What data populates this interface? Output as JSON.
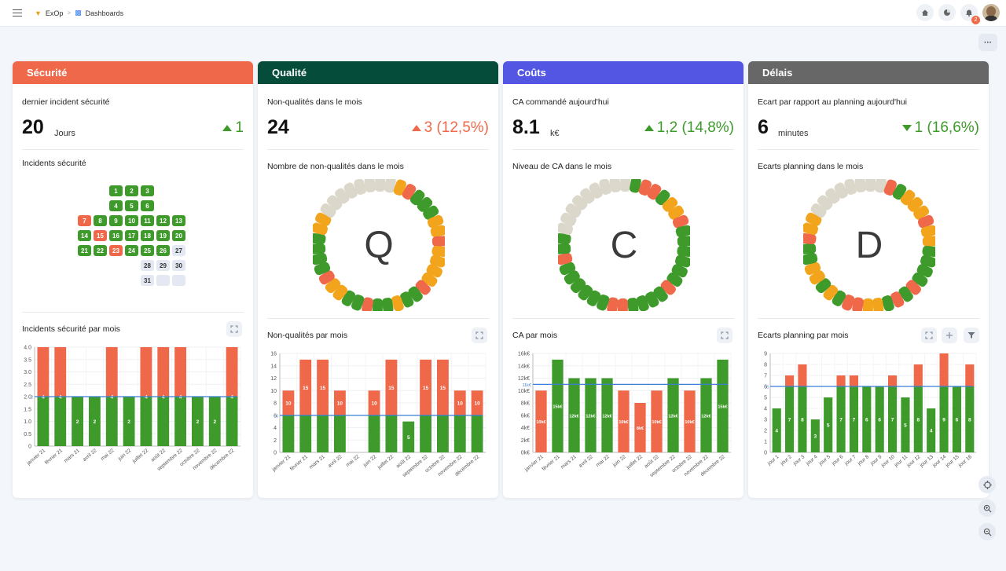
{
  "topbar": {
    "breadcrumb": [
      "ExOp",
      "Dashboards"
    ],
    "notification_count": "2"
  },
  "cards": [
    {
      "title": "Sécurité",
      "color": "#f0684a",
      "kpi_label": "dernier incident sécurité",
      "kpi_value": "20",
      "kpi_unit": "Jours",
      "kpi_delta": "1",
      "kpi_delta_dir": "up",
      "kpi_delta_color": "#3e9a2a",
      "section_title": "Incidents sécurité",
      "chart_title": "Incidents sécurité par mois"
    },
    {
      "title": "Qualité",
      "color": "#054d3a",
      "kpi_label": "Non-qualités dans le mois",
      "kpi_value": "24",
      "kpi_unit": "",
      "kpi_delta": "3 (12,5%)",
      "kpi_delta_dir": "up",
      "kpi_delta_color": "#f0684a",
      "section_title": "Nombre de non-qualités dans le mois",
      "wheel_letter": "Q",
      "chart_title": "Non-qualités par mois"
    },
    {
      "title": "Coûts",
      "color": "#5256e3",
      "kpi_label": "CA commandé aujourd'hui",
      "kpi_value": "8.1",
      "kpi_unit": "k€",
      "kpi_delta": "1,2 (14,8%)",
      "kpi_delta_dir": "up",
      "kpi_delta_color": "#3e9a2a",
      "section_title": "Niveau de CA dans le mois",
      "wheel_letter": "C",
      "chart_title": "CA par mois"
    },
    {
      "title": "Délais",
      "color": "#676767",
      "kpi_label": "Ecart par rapport au planning aujourd'hui",
      "kpi_value": "6",
      "kpi_unit": "minutes",
      "kpi_delta": "1 (16,6%)",
      "kpi_delta_dir": "down",
      "kpi_delta_color": "#3e9a2a",
      "section_title": "Ecarts planning dans le mois",
      "wheel_letter": "D",
      "chart_title": "Ecarts planning par mois"
    }
  ],
  "calendar": {
    "days": [
      {
        "d": "1",
        "c": "g"
      },
      {
        "d": "2",
        "c": "g"
      },
      {
        "d": "3",
        "c": "g"
      },
      {
        "d": "4",
        "c": "g"
      },
      {
        "d": "5",
        "c": "g"
      },
      {
        "d": "6",
        "c": "g"
      },
      {
        "d": "7",
        "c": "r"
      },
      {
        "d": "8",
        "c": "g"
      },
      {
        "d": "9",
        "c": "g"
      },
      {
        "d": "10",
        "c": "g"
      },
      {
        "d": "11",
        "c": "g"
      },
      {
        "d": "12",
        "c": "g"
      },
      {
        "d": "13",
        "c": "g"
      },
      {
        "d": "14",
        "c": "g"
      },
      {
        "d": "15",
        "c": "r"
      },
      {
        "d": "16",
        "c": "g"
      },
      {
        "d": "17",
        "c": "g"
      },
      {
        "d": "18",
        "c": "g"
      },
      {
        "d": "19",
        "c": "g"
      },
      {
        "d": "20",
        "c": "g"
      },
      {
        "d": "21",
        "c": "g"
      },
      {
        "d": "22",
        "c": "g"
      },
      {
        "d": "23",
        "c": "r"
      },
      {
        "d": "24",
        "c": "g"
      },
      {
        "d": "25",
        "c": "g"
      },
      {
        "d": "26",
        "c": "g"
      },
      {
        "d": "27",
        "c": "e"
      },
      {
        "d": "28",
        "c": "e"
      },
      {
        "d": "29",
        "c": "e"
      },
      {
        "d": "30",
        "c": "e"
      },
      {
        "d": "31",
        "c": "e"
      },
      {
        "d": "",
        "c": "e"
      },
      {
        "d": "",
        "c": "e"
      }
    ]
  },
  "wheels": [
    [
      "n",
      "n",
      "n",
      "n",
      "n",
      "o",
      "r",
      "g",
      "g",
      "g",
      "o",
      "o",
      "r",
      "o",
      "o",
      "o",
      "o",
      "r",
      "g",
      "g",
      "o",
      "g",
      "g",
      "r",
      "g",
      "g",
      "o",
      "o",
      "r",
      "g",
      "g",
      "g",
      "g",
      "o",
      "o",
      "n",
      "n",
      "n"
    ],
    [
      "n",
      "n",
      "n",
      "n",
      "g",
      "r",
      "r",
      "g",
      "o",
      "o",
      "r",
      "g",
      "g",
      "g",
      "g",
      "g",
      "g",
      "r",
      "g",
      "g",
      "g",
      "g",
      "r",
      "r",
      "g",
      "g",
      "g",
      "g",
      "g",
      "g",
      "r",
      "g",
      "g",
      "n",
      "n",
      "n",
      "n",
      "n"
    ],
    [
      "n",
      "n",
      "n",
      "n",
      "n",
      "r",
      "g",
      "o",
      "o",
      "o",
      "r",
      "o",
      "o",
      "g",
      "g",
      "g",
      "g",
      "r",
      "g",
      "r",
      "g",
      "o",
      "o",
      "r",
      "r",
      "g",
      "o",
      "g",
      "o",
      "o",
      "g",
      "g",
      "r",
      "o",
      "o",
      "n",
      "n",
      "n"
    ]
  ],
  "chart_data": [
    {
      "type": "bar",
      "title": "Incidents sécurité par mois",
      "categories": [
        "janvier 21",
        "février 21",
        "mars 21",
        "avril 22",
        "mai 22",
        "juin 22",
        "juillet 22",
        "août 22",
        "septembre 22",
        "octobre 22",
        "novembre 22",
        "décembre 22"
      ],
      "series": [
        {
          "values": [
            2,
            2,
            2,
            2,
            2,
            2,
            2,
            2,
            2,
            2,
            2,
            2
          ],
          "color": "#3e9a2a"
        },
        {
          "values": [
            2,
            2,
            0,
            0,
            2,
            0,
            2,
            2,
            2,
            0,
            0,
            2
          ],
          "color": "#f0684a"
        }
      ],
      "bar_labels": [
        "4",
        "4",
        "2",
        "2",
        "4",
        "2",
        "4",
        "4",
        "4",
        "2",
        "2",
        "4"
      ],
      "target": 2,
      "target_label": "2",
      "yticks": [
        "0",
        "0.5",
        "1.0",
        "1.5",
        "2.0",
        "2.5",
        "3.0",
        "3.5",
        "4.0"
      ],
      "ylim": [
        0,
        4
      ]
    },
    {
      "type": "bar",
      "title": "Non-qualités par mois",
      "categories": [
        "janvier 21",
        "février 21",
        "mars 21",
        "avril 22",
        "mai 22",
        "juin 22",
        "juillet 22",
        "août 22",
        "septembre 22",
        "octobre 22",
        "novembre 22",
        "décembre 22"
      ],
      "series": [
        {
          "values": [
            6,
            6,
            6,
            6,
            0,
            6,
            6,
            5,
            6,
            6,
            6,
            6
          ],
          "color": "#3e9a2a"
        },
        {
          "values": [
            4,
            9,
            9,
            4,
            0,
            4,
            9,
            0,
            9,
            9,
            4,
            4
          ],
          "color": "#f0684a"
        }
      ],
      "bar_labels": [
        "10",
        "15",
        "15",
        "10",
        "",
        "10",
        "15",
        "5",
        "15",
        "15",
        "10",
        "10"
      ],
      "target": 6,
      "target_label": "6",
      "yticks": [
        "0",
        "2",
        "4",
        "6",
        "8",
        "10",
        "12",
        "14",
        "16"
      ],
      "ylim": [
        0,
        16
      ]
    },
    {
      "type": "bar",
      "title": "CA par mois",
      "categories": [
        "janvier 21",
        "février 21",
        "mars 21",
        "avril 22",
        "mai 22",
        "juin 22",
        "juillet 22",
        "août 22",
        "septembre 22",
        "octobre 22",
        "novembre 22",
        "décembre 22"
      ],
      "series": [
        {
          "values": [
            0,
            15,
            12,
            12,
            12,
            0,
            0,
            0,
            12,
            0,
            12,
            15
          ],
          "color": "#3e9a2a"
        },
        {
          "values": [
            10,
            0,
            0,
            0,
            0,
            10,
            8,
            10,
            0,
            10,
            0,
            0
          ],
          "color": "#f0684a"
        }
      ],
      "bar_labels": [
        "10k€",
        "15k€",
        "12k€",
        "12k€",
        "12k€",
        "10k€",
        "8k€",
        "10k€",
        "12k€",
        "10k€",
        "12k€",
        "15k€"
      ],
      "target": 11,
      "target_label": "11k€",
      "yticks": [
        "0k€",
        "2k€",
        "4k€",
        "6k€",
        "8k€",
        "10k€",
        "12k€",
        "14k€",
        "16k€"
      ],
      "ylim": [
        0,
        16
      ]
    },
    {
      "type": "bar",
      "title": "Ecarts planning par mois",
      "categories": [
        "jour 1",
        "jour 2",
        "jour 3",
        "jour 4",
        "jour 5",
        "jour 6",
        "jour 7",
        "jour 8",
        "jour 9",
        "jour 10",
        "jour 11",
        "jour 12",
        "jour 13",
        "jour 14",
        "jour 15",
        "jour 16"
      ],
      "series": [
        {
          "values": [
            4,
            6,
            6,
            3,
            5,
            6,
            6,
            6,
            6,
            6,
            5,
            6,
            4,
            6,
            6,
            6
          ],
          "color": "#3e9a2a"
        },
        {
          "values": [
            0,
            1,
            2,
            0,
            0,
            1,
            1,
            0,
            0,
            1,
            0,
            2,
            0,
            3,
            0,
            2
          ],
          "color": "#f0684a"
        }
      ],
      "bar_labels": [
        "4",
        "7",
        "8",
        "3",
        "5",
        "7",
        "7",
        "6",
        "6",
        "7",
        "5",
        "8",
        "4",
        "9",
        "6",
        "8"
      ],
      "target": 6,
      "target_label": "6",
      "yticks": [
        "0",
        "1",
        "2",
        "3",
        "4",
        "5",
        "6",
        "7",
        "8",
        "9"
      ],
      "ylim": [
        0,
        9
      ]
    }
  ]
}
